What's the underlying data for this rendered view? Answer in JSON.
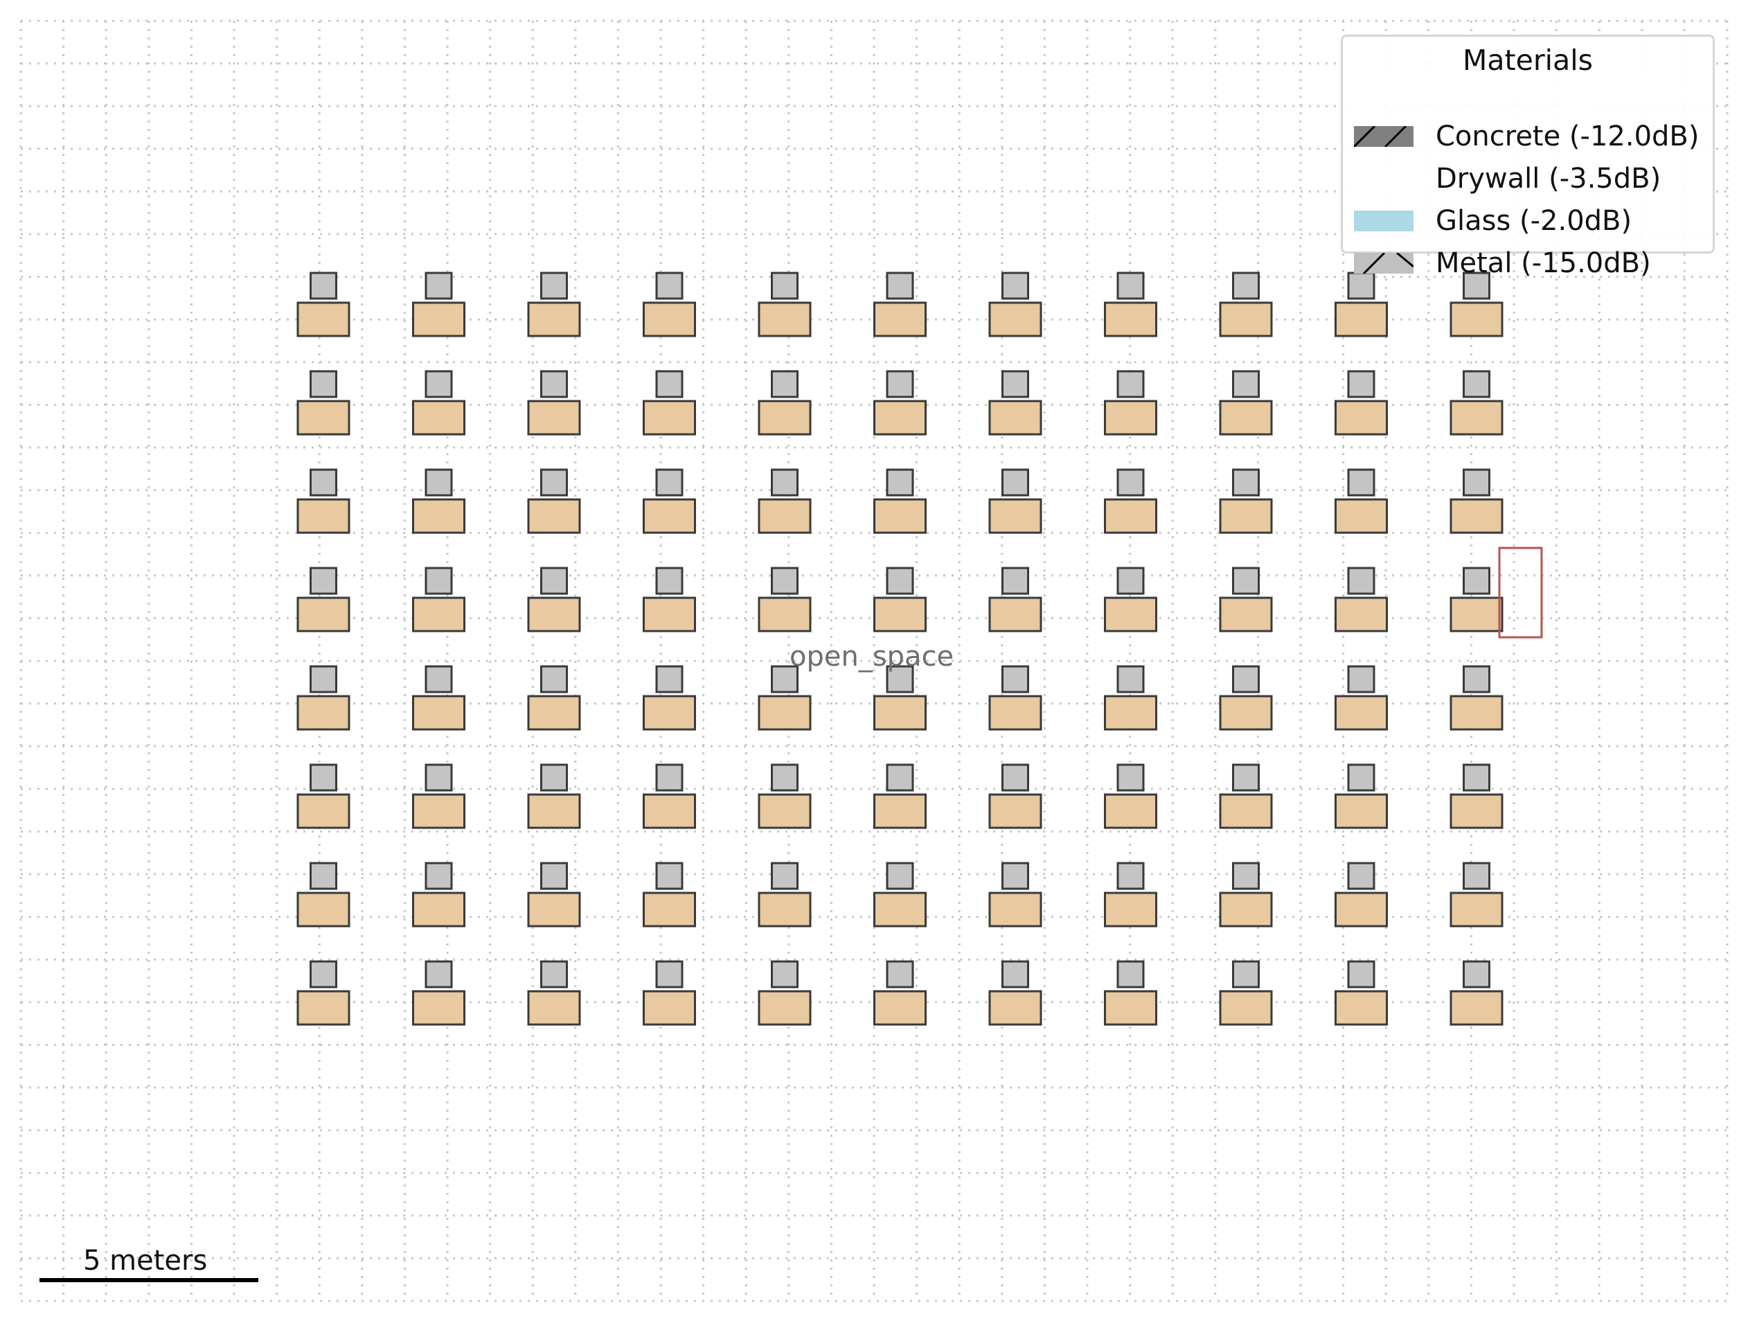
{
  "legend": {
    "title": "Materials",
    "items": [
      {
        "label": "Concrete (-12.0dB)",
        "material": "concrete",
        "fill": "#808080",
        "hatch": "forward-diagonal"
      },
      {
        "label": "Drywall (-3.5dB)",
        "material": "drywall",
        "fill": "#ffffff",
        "hatch": "none"
      },
      {
        "label": "Glass (-2.0dB)",
        "material": "glass",
        "fill": "#add8e6",
        "hatch": "none"
      },
      {
        "label": "Metal (-15.0dB)",
        "material": "metal",
        "fill": "#c0c0c0",
        "hatch": "cross-diagonal"
      }
    ]
  },
  "zone": {
    "label": "open_space"
  },
  "scale_bar": {
    "label": "5 meters"
  },
  "workstations": {
    "columns": 11,
    "rows": 8,
    "desk_color": "#e8c9a0",
    "chair_color": "#c4c4c4",
    "outline_color": "#3a3a3a"
  },
  "highlight": {
    "color": "#b85450"
  },
  "grid": {
    "style": "dotted",
    "color": "#c8c8c8"
  }
}
